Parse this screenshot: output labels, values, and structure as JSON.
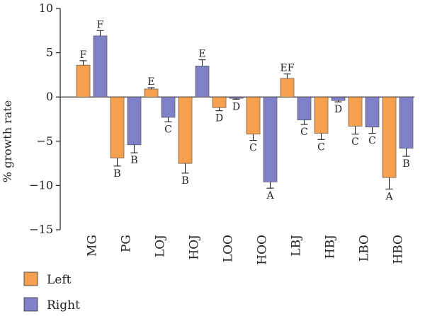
{
  "chart_data": {
    "type": "bar",
    "title": "",
    "xlabel": "",
    "ylabel": "% growth rate",
    "ylim": [
      -15,
      10
    ],
    "yticks": [
      10,
      5,
      0,
      -5,
      -10,
      -15
    ],
    "ytick_labels": [
      "10",
      "5",
      "0",
      "−5",
      "−10",
      "−15"
    ],
    "categories": [
      "MG",
      "PG",
      "LOJ",
      "HOJ",
      "LOO",
      "HOO",
      "LBJ",
      "HBJ",
      "LBO",
      "HBO"
    ],
    "legend_position": "bottom-left",
    "grid": false,
    "series": [
      {
        "name": "Left",
        "color": "#F4A04E",
        "values": [
          3.6,
          -6.9,
          0.9,
          -7.5,
          -1.2,
          -4.2,
          2.1,
          -4.1,
          -3.3,
          -9.1
        ],
        "errors": [
          0.5,
          0.9,
          0.15,
          1.1,
          0.35,
          0.7,
          0.5,
          0.7,
          0.9,
          1.3
        ],
        "letters": [
          "F",
          "B",
          "E",
          "B",
          "D",
          "C",
          "EF",
          "C",
          "C",
          "A"
        ]
      },
      {
        "name": "Right",
        "color": "#8080C8",
        "values": [
          6.9,
          -5.4,
          -2.3,
          3.5,
          -0.15,
          -9.6,
          -2.6,
          -0.4,
          -3.4,
          -5.8
        ],
        "errors": [
          0.6,
          0.9,
          0.5,
          0.7,
          0.1,
          0.7,
          0.5,
          0.15,
          0.7,
          0.9
        ],
        "letters": [
          "F",
          "B",
          "C",
          "E",
          "D",
          "A",
          "C",
          "D",
          "C",
          "B"
        ]
      }
    ]
  }
}
